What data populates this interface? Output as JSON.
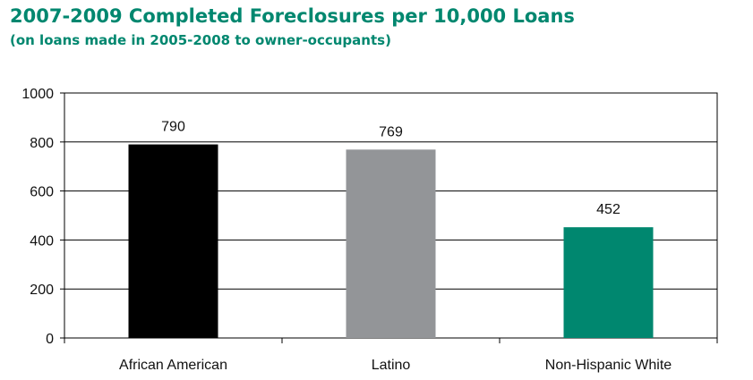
{
  "title": "2007-2009 Completed Foreclosures per 10,000 Loans",
  "subtitle": "(on loans made in 2005-2008 to owner-occupants)",
  "chart_data": {
    "type": "bar",
    "categories": [
      "African American",
      "Latino",
      "Non-Hispanic White"
    ],
    "values": [
      790,
      769,
      452
    ],
    "data_labels": [
      "790",
      "769",
      "452"
    ],
    "colors": [
      "#000000",
      "#939598",
      "#00876f"
    ],
    "ylim": [
      0,
      1000
    ],
    "yticks": [
      0,
      200,
      400,
      600,
      800,
      1000
    ],
    "grid": true,
    "xlabel": "",
    "ylabel": ""
  }
}
